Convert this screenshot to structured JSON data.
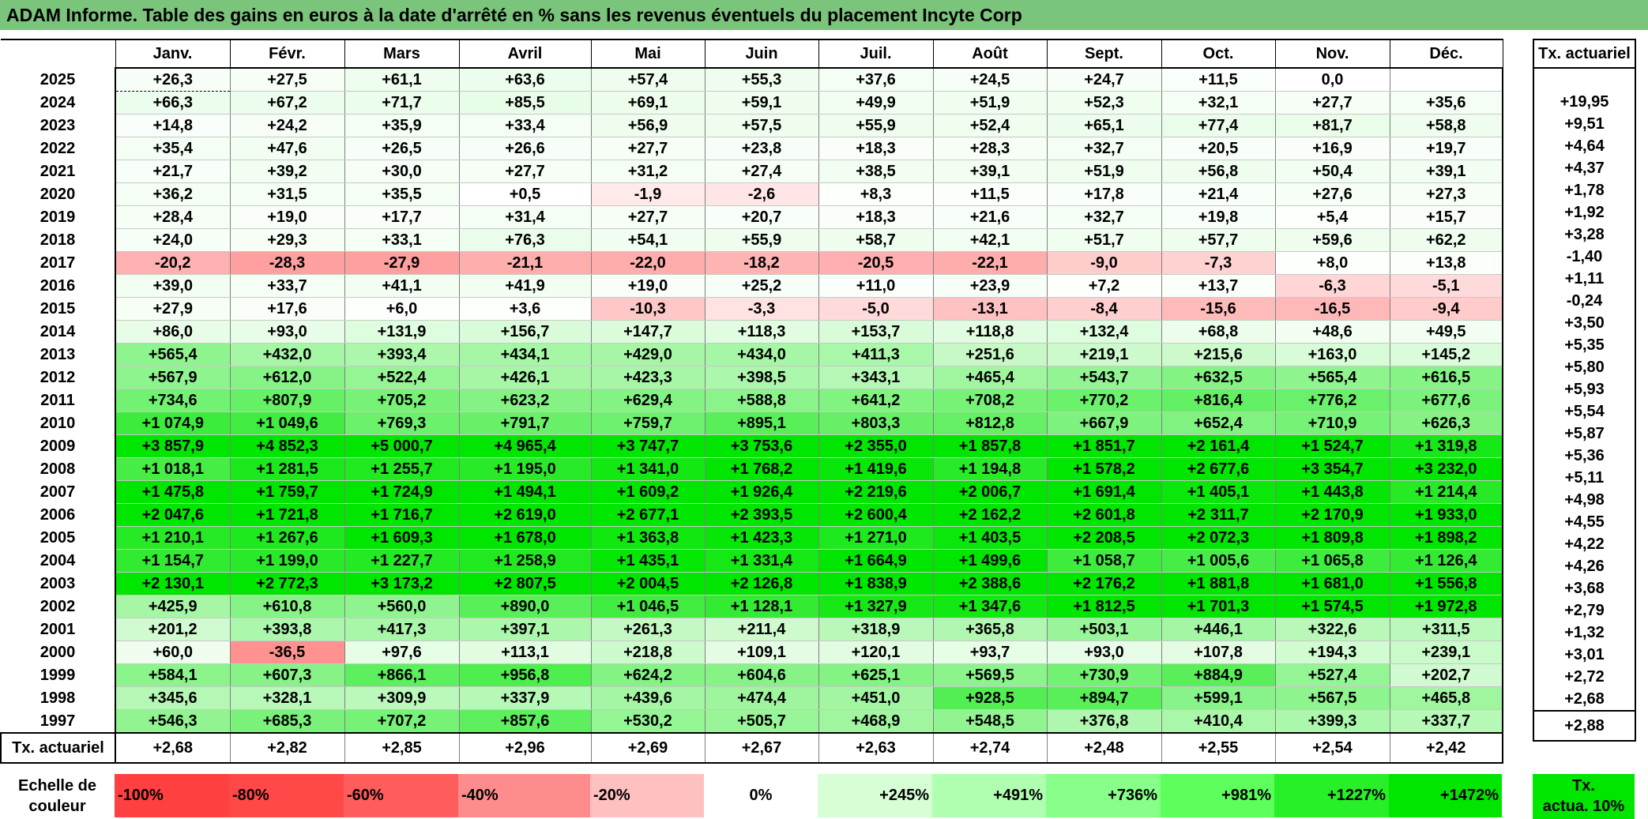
{
  "title": "ADAM Informe. Table des gains en euros à la date d'arrêté en % sans les revenus éventuels du placement Incyte Corp",
  "months": [
    "Janv.",
    "Févr.",
    "Mars",
    "Avril",
    "Mai",
    "Juin",
    "Juil.",
    "Août",
    "Sept.",
    "Oct.",
    "Nov.",
    "Déc."
  ],
  "side_header": "Tx. actuariel",
  "rows": [
    {
      "year": "2025",
      "values": [
        "+26,3",
        "+27,5",
        "+61,1",
        "+63,6",
        "+57,4",
        "+55,3",
        "+37,6",
        "+24,5",
        "+24,7",
        "+11,5",
        "0,0",
        ""
      ],
      "rate": ""
    },
    {
      "year": "2024",
      "values": [
        "+66,3",
        "+67,2",
        "+71,7",
        "+85,5",
        "+69,1",
        "+59,1",
        "+49,9",
        "+51,9",
        "+52,3",
        "+32,1",
        "+27,7",
        "+35,6"
      ],
      "rate": "+19,95"
    },
    {
      "year": "2023",
      "values": [
        "+14,8",
        "+24,2",
        "+35,9",
        "+33,4",
        "+56,9",
        "+57,5",
        "+55,9",
        "+52,4",
        "+65,1",
        "+77,4",
        "+81,7",
        "+58,8"
      ],
      "rate": "+9,51"
    },
    {
      "year": "2022",
      "values": [
        "+35,4",
        "+47,6",
        "+26,5",
        "+26,6",
        "+27,7",
        "+23,8",
        "+18,3",
        "+28,3",
        "+32,7",
        "+20,5",
        "+16,9",
        "+19,7"
      ],
      "rate": "+4,64"
    },
    {
      "year": "2021",
      "values": [
        "+21,7",
        "+39,2",
        "+30,0",
        "+27,7",
        "+31,2",
        "+27,4",
        "+38,5",
        "+39,1",
        "+51,9",
        "+56,8",
        "+50,4",
        "+39,1"
      ],
      "rate": "+4,37"
    },
    {
      "year": "2020",
      "values": [
        "+36,2",
        "+31,5",
        "+35,5",
        "+0,5",
        "-1,9",
        "-2,6",
        "+8,3",
        "+11,5",
        "+17,8",
        "+21,4",
        "+27,6",
        "+27,3"
      ],
      "rate": "+1,78"
    },
    {
      "year": "2019",
      "values": [
        "+28,4",
        "+19,0",
        "+17,7",
        "+31,4",
        "+27,7",
        "+20,7",
        "+18,3",
        "+21,6",
        "+32,7",
        "+19,8",
        "+5,4",
        "+15,7"
      ],
      "rate": "+1,92"
    },
    {
      "year": "2018",
      "values": [
        "+24,0",
        "+29,3",
        "+33,1",
        "+76,3",
        "+54,1",
        "+55,9",
        "+58,7",
        "+42,1",
        "+51,7",
        "+57,7",
        "+59,6",
        "+62,2"
      ],
      "rate": "+3,28"
    },
    {
      "year": "2017",
      "values": [
        "-20,2",
        "-28,3",
        "-27,9",
        "-21,1",
        "-22,0",
        "-18,2",
        "-20,5",
        "-22,1",
        "-9,0",
        "-7,3",
        "+8,0",
        "+13,8"
      ],
      "rate": "-1,40"
    },
    {
      "year": "2016",
      "values": [
        "+39,0",
        "+33,7",
        "+41,1",
        "+41,9",
        "+19,0",
        "+25,2",
        "+11,0",
        "+23,9",
        "+7,2",
        "+13,7",
        "-6,3",
        "-5,1"
      ],
      "rate": "+1,11"
    },
    {
      "year": "2015",
      "values": [
        "+27,9",
        "+17,6",
        "+6,0",
        "+3,6",
        "-10,3",
        "-3,3",
        "-5,0",
        "-13,1",
        "-8,4",
        "-15,6",
        "-16,5",
        "-9,4"
      ],
      "rate": "-0,24"
    },
    {
      "year": "2014",
      "values": [
        "+86,0",
        "+93,0",
        "+131,9",
        "+156,7",
        "+147,7",
        "+118,3",
        "+153,7",
        "+118,8",
        "+132,4",
        "+68,8",
        "+48,6",
        "+49,5"
      ],
      "rate": "+3,50"
    },
    {
      "year": "2013",
      "values": [
        "+565,4",
        "+432,0",
        "+393,4",
        "+434,1",
        "+429,0",
        "+434,0",
        "+411,3",
        "+251,6",
        "+219,1",
        "+215,6",
        "+163,0",
        "+145,2"
      ],
      "rate": "+5,35"
    },
    {
      "year": "2012",
      "values": [
        "+567,9",
        "+612,0",
        "+522,4",
        "+426,1",
        "+423,3",
        "+398,5",
        "+343,1",
        "+465,4",
        "+543,7",
        "+632,5",
        "+565,4",
        "+616,5"
      ],
      "rate": "+5,80"
    },
    {
      "year": "2011",
      "values": [
        "+734,6",
        "+807,9",
        "+705,2",
        "+623,2",
        "+629,4",
        "+588,8",
        "+641,2",
        "+708,2",
        "+770,2",
        "+816,4",
        "+776,2",
        "+677,6"
      ],
      "rate": "+5,93"
    },
    {
      "year": "2010",
      "values": [
        "+1 074,9",
        "+1 049,6",
        "+769,3",
        "+791,7",
        "+759,7",
        "+895,1",
        "+803,3",
        "+812,8",
        "+667,9",
        "+652,4",
        "+710,9",
        "+626,3"
      ],
      "rate": "+5,54"
    },
    {
      "year": "2009",
      "values": [
        "+3 857,9",
        "+4 852,3",
        "+5 000,7",
        "+4 965,4",
        "+3 747,7",
        "+3 753,6",
        "+2 355,0",
        "+1 857,8",
        "+1 851,7",
        "+2 161,4",
        "+1 524,7",
        "+1 319,8"
      ],
      "rate": "+5,87"
    },
    {
      "year": "2008",
      "values": [
        "+1 018,1",
        "+1 281,5",
        "+1 255,7",
        "+1 195,0",
        "+1 341,0",
        "+1 768,2",
        "+1 419,6",
        "+1 194,8",
        "+1 578,2",
        "+2 677,6",
        "+3 354,7",
        "+3 232,0"
      ],
      "rate": "+5,36"
    },
    {
      "year": "2007",
      "values": [
        "+1 475,8",
        "+1 759,7",
        "+1 724,9",
        "+1 494,1",
        "+1 609,2",
        "+1 926,4",
        "+2 219,6",
        "+2 006,7",
        "+1 691,4",
        "+1 405,1",
        "+1 443,8",
        "+1 214,4"
      ],
      "rate": "+5,11"
    },
    {
      "year": "2006",
      "values": [
        "+2 047,6",
        "+1 721,8",
        "+1 716,7",
        "+2 619,0",
        "+2 677,1",
        "+2 393,5",
        "+2 600,4",
        "+2 162,2",
        "+2 601,8",
        "+2 311,7",
        "+2 170,9",
        "+1 933,0"
      ],
      "rate": "+4,98"
    },
    {
      "year": "2005",
      "values": [
        "+1 210,1",
        "+1 267,6",
        "+1 609,3",
        "+1 678,0",
        "+1 363,8",
        "+1 423,3",
        "+1 271,0",
        "+1 403,5",
        "+2 208,5",
        "+2 072,3",
        "+1 809,8",
        "+1 898,2"
      ],
      "rate": "+4,55"
    },
    {
      "year": "2004",
      "values": [
        "+1 154,7",
        "+1 199,0",
        "+1 227,7",
        "+1 258,9",
        "+1 435,1",
        "+1 331,4",
        "+1 664,9",
        "+1 499,6",
        "+1 058,7",
        "+1 005,6",
        "+1 065,8",
        "+1 126,4"
      ],
      "rate": "+4,22"
    },
    {
      "year": "2003",
      "values": [
        "+2 130,1",
        "+2 772,3",
        "+3 173,2",
        "+2 807,5",
        "+2 004,5",
        "+2 126,8",
        "+1 838,9",
        "+2 388,6",
        "+2 176,2",
        "+1 881,8",
        "+1 681,0",
        "+1 556,8"
      ],
      "rate": "+4,26"
    },
    {
      "year": "2002",
      "values": [
        "+425,9",
        "+610,8",
        "+560,0",
        "+890,0",
        "+1 046,5",
        "+1 128,1",
        "+1 327,9",
        "+1 347,6",
        "+1 812,5",
        "+1 701,3",
        "+1 574,5",
        "+1 972,8"
      ],
      "rate": "+3,68"
    },
    {
      "year": "2001",
      "values": [
        "+201,2",
        "+393,8",
        "+417,3",
        "+397,1",
        "+261,3",
        "+211,4",
        "+318,9",
        "+365,8",
        "+503,1",
        "+446,1",
        "+322,6",
        "+311,5"
      ],
      "rate": "+2,79"
    },
    {
      "year": "2000",
      "values": [
        "+60,0",
        "-36,5",
        "+97,6",
        "+113,1",
        "+218,8",
        "+109,1",
        "+120,1",
        "+93,7",
        "+93,0",
        "+107,8",
        "+194,3",
        "+239,1"
      ],
      "rate": "+1,32"
    },
    {
      "year": "1999",
      "values": [
        "+584,1",
        "+607,3",
        "+866,1",
        "+956,8",
        "+624,2",
        "+604,6",
        "+625,1",
        "+569,5",
        "+730,9",
        "+884,9",
        "+527,4",
        "+202,7"
      ],
      "rate": "+3,01"
    },
    {
      "year": "1998",
      "values": [
        "+345,6",
        "+328,1",
        "+309,9",
        "+337,9",
        "+439,6",
        "+474,4",
        "+451,0",
        "+928,5",
        "+894,7",
        "+599,1",
        "+567,5",
        "+465,8"
      ],
      "rate": "+2,72"
    },
    {
      "year": "1997",
      "values": [
        "+546,3",
        "+685,3",
        "+707,2",
        "+857,6",
        "+530,2",
        "+505,7",
        "+468,9",
        "+548,5",
        "+376,8",
        "+410,4",
        "+399,3",
        "+337,7"
      ],
      "rate": "+2,68"
    }
  ],
  "footer": {
    "label": "Tx. actuariel",
    "values": [
      "+2,68",
      "+2,82",
      "+2,85",
      "+2,96",
      "+2,69",
      "+2,67",
      "+2,63",
      "+2,74",
      "+2,48",
      "+2,55",
      "+2,54",
      "+2,42"
    ],
    "rate": "+2,88"
  },
  "scale": {
    "label_line1": "Echelle de",
    "label_line2": "couleur",
    "steps": [
      {
        "label": "-100%",
        "color": "#ff4040",
        "align": "l"
      },
      {
        "label": "-80%",
        "color": "#ff4848",
        "align": "l"
      },
      {
        "label": "-60%",
        "color": "#ff5c5c",
        "align": "l"
      },
      {
        "label": "-40%",
        "color": "#ff8c8c",
        "align": "l"
      },
      {
        "label": "-20%",
        "color": "#ffc0c0",
        "align": "l"
      },
      {
        "label": "0%",
        "color": "#ffffff",
        "align": "c"
      },
      {
        "label": "+245%",
        "color": "#d6ffd6",
        "align": "r"
      },
      {
        "label": "+491%",
        "color": "#b0ffb0",
        "align": "r"
      },
      {
        "label": "+736%",
        "color": "#88ff88",
        "align": "r"
      },
      {
        "label": "+981%",
        "color": "#5cff5c",
        "align": "r"
      },
      {
        "label": "+1227%",
        "color": "#28f028",
        "align": "r"
      },
      {
        "label": "+1472%",
        "color": "#00e600",
        "align": "r"
      }
    ],
    "tx_line1": "Tx.",
    "tx_line2": "actua. 10%"
  },
  "colors": {
    "title_bar": "#7bc47b",
    "max_green": "#00e600",
    "max_red": "#ff4040"
  }
}
